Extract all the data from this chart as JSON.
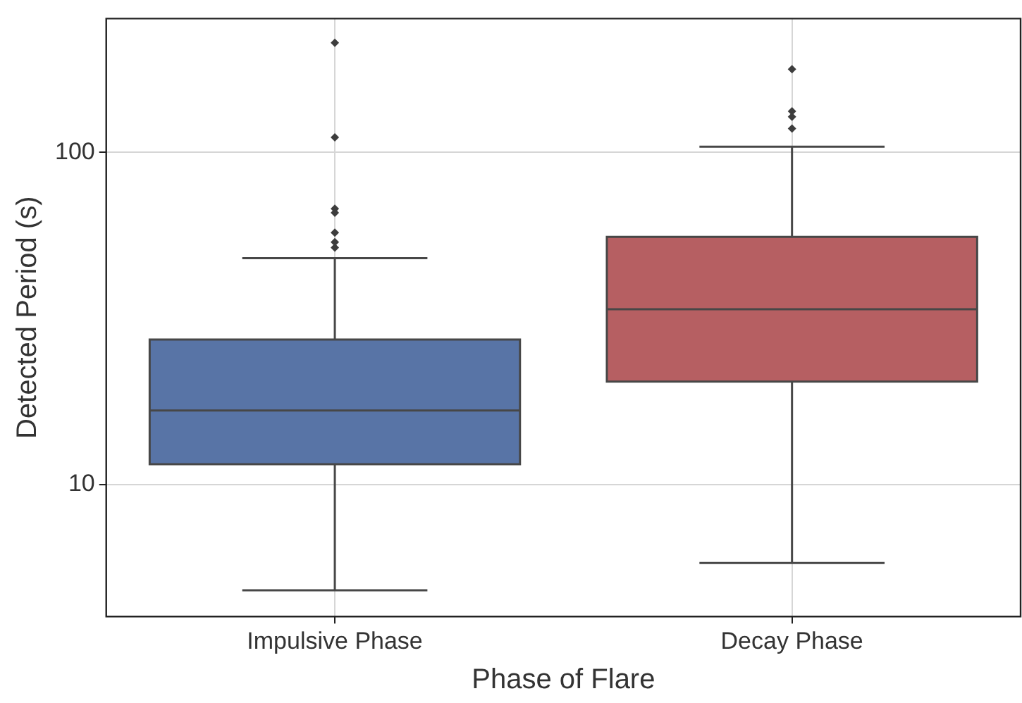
{
  "chart_data": {
    "type": "box",
    "xlabel": "Phase of Flare",
    "ylabel": "Detected Period (s)",
    "categories": [
      "Impulsive Phase",
      "Decay Phase"
    ],
    "colors": [
      "#5874a6",
      "#b65f62"
    ],
    "boxes": [
      {
        "low": 4.8,
        "q1": 11.5,
        "median": 16.7,
        "q3": 27.3,
        "high": 48,
        "outliers": [
          51.7,
          53.7,
          57.3,
          65.8,
          67.7,
          111,
          214
        ]
      },
      {
        "low": 5.8,
        "q1": 20.4,
        "median": 33.7,
        "q3": 55.7,
        "high": 104,
        "outliers": [
          118,
          128,
          133,
          178
        ]
      }
    ],
    "log": "y",
    "ylim": [
      4,
      253
    ],
    "yticks": [
      10,
      100
    ],
    "grid": true
  }
}
